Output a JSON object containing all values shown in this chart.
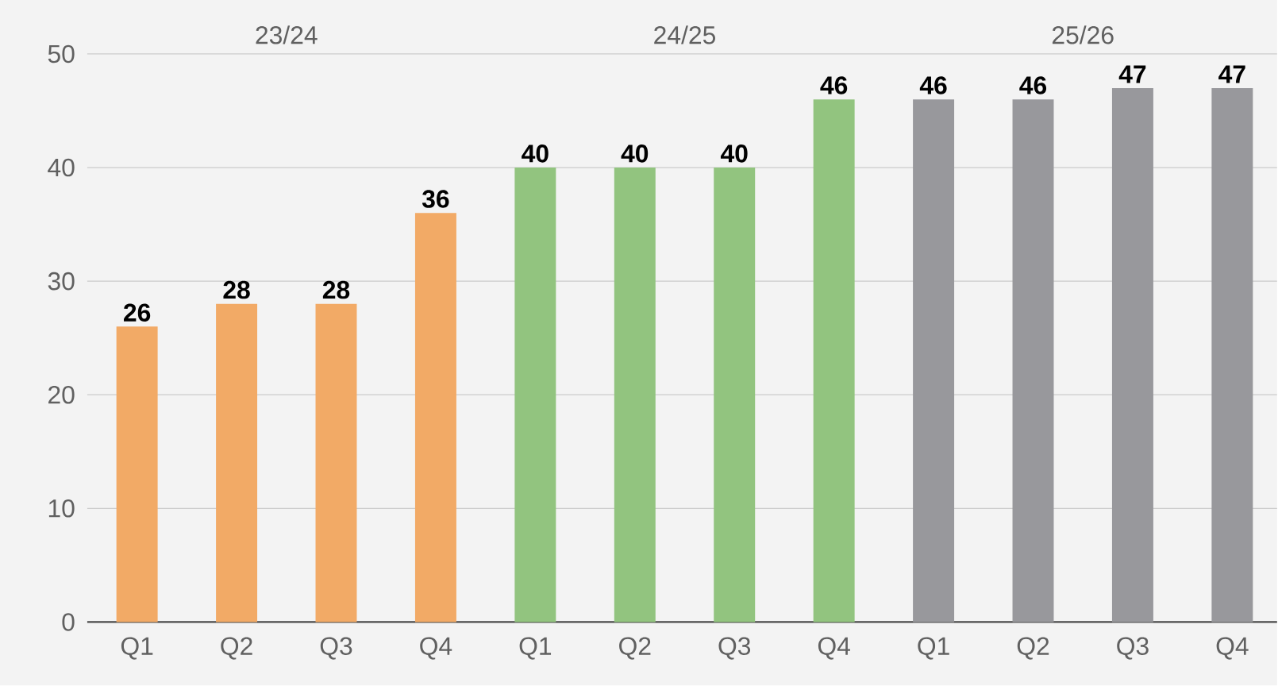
{
  "chart_data": {
    "type": "bar",
    "categories": [
      "Q1",
      "Q2",
      "Q3",
      "Q4",
      "Q1",
      "Q2",
      "Q3",
      "Q4",
      "Q1",
      "Q2",
      "Q3",
      "Q4"
    ],
    "values": [
      26,
      28,
      28,
      36,
      40,
      40,
      40,
      46,
      46,
      46,
      47,
      47
    ],
    "colors": [
      "#f2aa66",
      "#f2aa66",
      "#f2aa66",
      "#f2aa66",
      "#92c47f",
      "#92c47f",
      "#92c47f",
      "#92c47f",
      "#98989c",
      "#98989c",
      "#98989c",
      "#98989c"
    ],
    "annotations": [
      "23/24",
      "24/25",
      "25/26"
    ],
    "ylim": [
      0,
      50
    ],
    "yticks": [
      0,
      10,
      20,
      30,
      40,
      50
    ],
    "grid": "y",
    "data_labels": true
  }
}
